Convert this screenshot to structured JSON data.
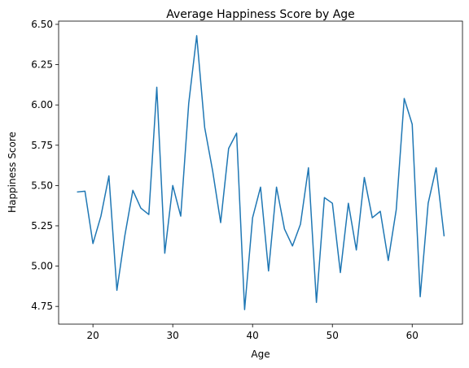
{
  "chart_data": {
    "type": "line",
    "title": "Average Happiness Score by Age",
    "xlabel": "Age",
    "ylabel": "Happiness Score",
    "xlim": [
      15.7,
      66.3
    ],
    "ylim": [
      4.64,
      6.52
    ],
    "xticks": [
      20,
      30,
      40,
      50,
      60
    ],
    "yticks": [
      4.75,
      5.0,
      5.25,
      5.5,
      5.75,
      6.0,
      6.25,
      6.5
    ],
    "ytick_labels": [
      "4.75",
      "5.00",
      "5.25",
      "5.50",
      "5.75",
      "6.00",
      "6.25",
      "6.50"
    ],
    "grid": false,
    "line_color": "#1f77b4",
    "x": [
      18,
      19,
      20,
      21,
      22,
      23,
      24,
      25,
      26,
      27,
      28,
      29,
      30,
      31,
      32,
      33,
      34,
      35,
      36,
      37,
      38,
      39,
      40,
      41,
      42,
      43,
      44,
      45,
      46,
      47,
      48,
      49,
      50,
      51,
      52,
      53,
      54,
      55,
      56,
      57,
      58,
      59,
      60,
      61,
      62,
      63,
      64
    ],
    "y": [
      5.46,
      5.465,
      5.14,
      5.31,
      5.56,
      4.85,
      5.19,
      5.47,
      5.36,
      5.32,
      6.11,
      5.08,
      5.5,
      5.31,
      6.01,
      6.43,
      5.86,
      5.59,
      5.27,
      5.73,
      5.825,
      4.73,
      5.3,
      5.49,
      4.97,
      5.49,
      5.23,
      5.125,
      5.26,
      5.61,
      4.775,
      5.425,
      5.39,
      4.96,
      5.39,
      5.1,
      5.55,
      5.3,
      5.34,
      5.035,
      5.35,
      6.04,
      5.88,
      4.81,
      5.39,
      5.61,
      5.185
    ]
  }
}
